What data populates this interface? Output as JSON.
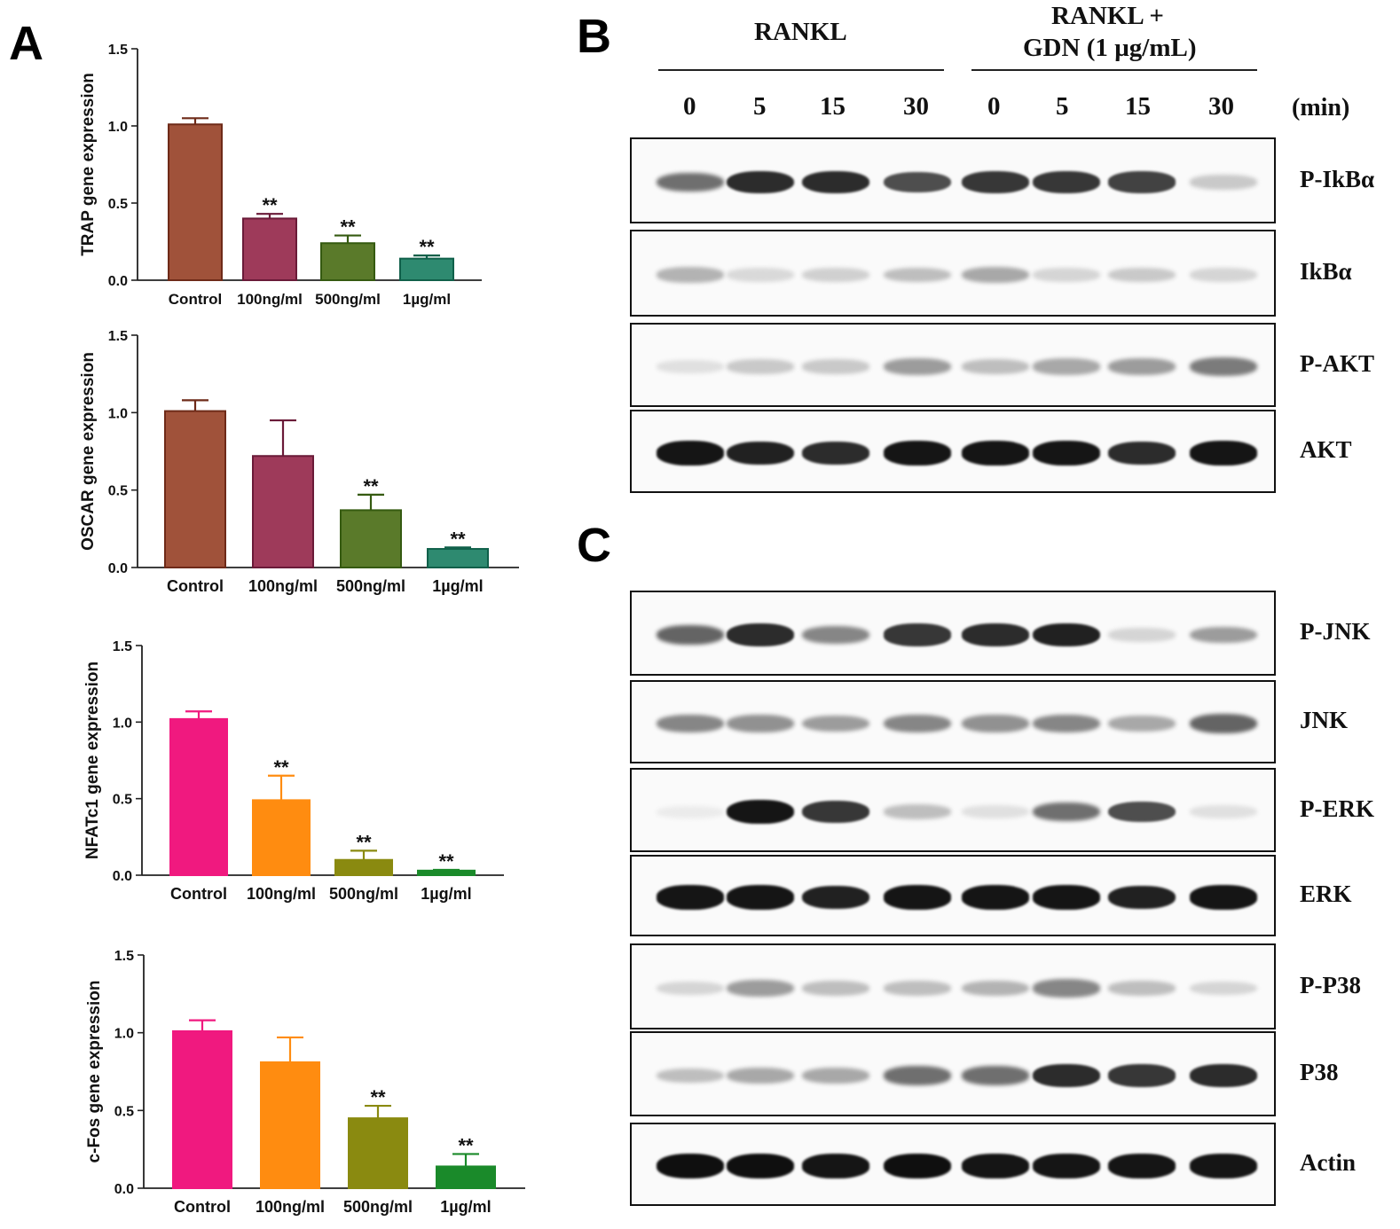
{
  "panels": {
    "a": "A",
    "b": "B",
    "c": "C"
  },
  "chart_data": [
    {
      "type": "bar",
      "ylabel": "TRAP gene expression",
      "categories": [
        "Control",
        "100ng/ml",
        "500ng/ml",
        "1µg/ml"
      ],
      "values": [
        1.01,
        0.4,
        0.24,
        0.14
      ],
      "errors": [
        0.04,
        0.03,
        0.05,
        0.02
      ],
      "annotations": [
        "",
        "**",
        "**",
        "**"
      ],
      "ylim": [
        0,
        1.5
      ],
      "yticks": [
        "0.0",
        "0.5",
        "1.0",
        "1.5"
      ],
      "colors": [
        "#a0523a",
        "#9e3a5a",
        "#5a7a2a",
        "#2e8a70"
      ],
      "edges": [
        "#6e2a18",
        "#6a1a38",
        "#355a10",
        "#10604a"
      ]
    },
    {
      "type": "bar",
      "ylabel": "OSCAR gene expression",
      "categories": [
        "Control",
        "100ng/ml",
        "500ng/ml",
        "1µg/ml"
      ],
      "values": [
        1.01,
        0.72,
        0.37,
        0.12
      ],
      "errors": [
        0.07,
        0.23,
        0.1,
        0.01
      ],
      "annotations": [
        "",
        "",
        "**",
        "**"
      ],
      "ylim": [
        0,
        1.5
      ],
      "yticks": [
        "0.0",
        "0.5",
        "1.0",
        "1.5"
      ],
      "colors": [
        "#a0523a",
        "#9e3a5a",
        "#5a7a2a",
        "#2e8a70"
      ],
      "edges": [
        "#6e2a18",
        "#6a1a38",
        "#355a10",
        "#10604a"
      ]
    },
    {
      "type": "bar",
      "ylabel": "NFATc1 gene expression",
      "categories": [
        "Control",
        "100ng/ml",
        "500ng/ml",
        "1µg/ml"
      ],
      "values": [
        1.02,
        0.49,
        0.1,
        0.03
      ],
      "errors": [
        0.05,
        0.16,
        0.06,
        0.005
      ],
      "annotations": [
        "",
        "**",
        "**",
        "**"
      ],
      "ylim": [
        0,
        1.5
      ],
      "yticks": [
        "0.0",
        "0.5",
        "1.0",
        "1.5"
      ],
      "colors": [
        "#f0197f",
        "#ff8c10",
        "#8a8a10",
        "#1a8a2a"
      ],
      "edges": [
        "#f0197f",
        "#ff8c10",
        "#8a8a10",
        "#1a8a2a"
      ]
    },
    {
      "type": "bar",
      "ylabel": "c-Fos gene expression",
      "categories": [
        "Control",
        "100ng/ml",
        "500ng/ml",
        "1µg/ml"
      ],
      "values": [
        1.01,
        0.81,
        0.45,
        0.14
      ],
      "errors": [
        0.07,
        0.16,
        0.08,
        0.08
      ],
      "annotations": [
        "",
        "",
        "**",
        "**"
      ],
      "ylim": [
        0,
        1.5
      ],
      "yticks": [
        "0.0",
        "0.5",
        "1.0",
        "1.5"
      ],
      "colors": [
        "#f0197f",
        "#ff8c10",
        "#8a8a10",
        "#1a8a2a"
      ],
      "edges": [
        "#f0197f",
        "#ff8c10",
        "#8a8a10",
        "#1a8a2a"
      ]
    }
  ],
  "blot": {
    "group1": "RANKL",
    "group2_line1": "RANKL +",
    "group2_line2": "GDN (1 µg/mL)",
    "time_points": [
      "0",
      "5",
      "15",
      "30",
      "0",
      "5",
      "15",
      "30"
    ],
    "time_unit": "(min)",
    "panel_b_rows": [
      {
        "label": "P-IkBα",
        "intensity": [
          0.55,
          0.85,
          0.85,
          0.7,
          0.8,
          0.8,
          0.75,
          0.15
        ]
      },
      {
        "label": "IkBα",
        "intensity": [
          0.25,
          0.08,
          0.12,
          0.2,
          0.3,
          0.1,
          0.15,
          0.1
        ]
      },
      {
        "label": "P-AKT",
        "intensity": [
          0.05,
          0.15,
          0.15,
          0.35,
          0.2,
          0.3,
          0.35,
          0.5
        ]
      },
      {
        "label": "AKT",
        "intensity": [
          0.95,
          0.9,
          0.85,
          0.95,
          0.95,
          0.95,
          0.85,
          0.95
        ]
      }
    ],
    "panel_c_rows": [
      {
        "label": "P-JNK",
        "intensity": [
          0.6,
          0.85,
          0.45,
          0.8,
          0.85,
          0.9,
          0.1,
          0.35
        ]
      },
      {
        "label": "JNK",
        "intensity": [
          0.45,
          0.4,
          0.35,
          0.45,
          0.4,
          0.45,
          0.3,
          0.6
        ]
      },
      {
        "label": "P-ERK",
        "intensity": [
          0.0,
          0.95,
          0.8,
          0.2,
          0.05,
          0.55,
          0.7,
          0.05
        ]
      },
      {
        "label": "ERK",
        "intensity": [
          0.95,
          0.95,
          0.9,
          0.95,
          0.95,
          0.95,
          0.9,
          0.95
        ]
      },
      {
        "label": "P-P38",
        "intensity": [
          0.1,
          0.35,
          0.2,
          0.2,
          0.25,
          0.45,
          0.2,
          0.1
        ]
      },
      {
        "label": "P38",
        "intensity": [
          0.2,
          0.3,
          0.3,
          0.55,
          0.55,
          0.85,
          0.8,
          0.85
        ]
      },
      {
        "label": "Actin",
        "intensity": [
          0.98,
          0.98,
          0.95,
          0.98,
          0.95,
          0.95,
          0.95,
          0.95
        ]
      }
    ]
  }
}
